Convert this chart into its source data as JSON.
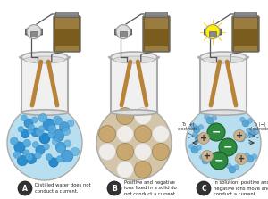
{
  "bg_color": "#ffffff",
  "labels": {
    "A": "Distilled water does not\nconduct a current.",
    "B": "Positive and negative\nions fixed in a solid do\nnot conduct a current.",
    "C": "In solution, positive and\nnegative ions move and\nconduct a current."
  },
  "circle_A_color": "#b8dff0",
  "circle_B_color": "#d4c4a8",
  "circle_C_color": "#b8dff0",
  "beaker_edge_color": "#bbbbbb",
  "electrode_color": "#b8843a",
  "wire_color": "#555555",
  "battery_body": "#7a5c1e",
  "battery_cap": "#888888",
  "bulb_off": "#dddddd",
  "bulb_on": "#ffee00",
  "label_bg": "#444444"
}
